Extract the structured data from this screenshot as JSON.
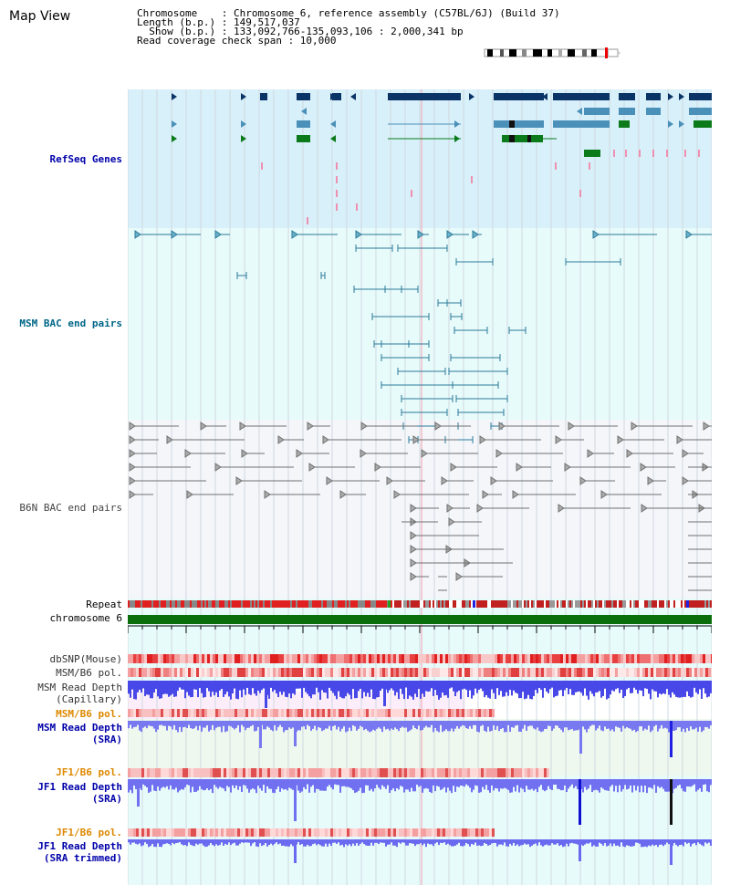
{
  "title": "Map View",
  "info": {
    "chromosome": "Chromosome    : Chromosome 6, reference assembly (C57BL/6J) (Build 37)",
    "length": "Length (b.p.) : 149,517,037",
    "show": "  Show (b.p.) : 133,092,766-135,093,106 : 2,000,341 bp",
    "span": "Read coverage check span : 10,000"
  },
  "tracks": {
    "refseq": "RefSeq Genes",
    "msm_bac": "MSM BAC end pairs",
    "b6n_bac": "B6N BAC end pairs",
    "repeat": "Repeat",
    "chromosome": "chromosome 6",
    "dbsnp": "dbSNP(Mouse)",
    "msm_b6_pol_1": "MSM/B6 pol.",
    "msm_read_cap_1": "MSM Read Depth",
    "msm_read_cap_2": "(Capillary)",
    "msm_b6_pol_2": "MSM/B6 pol.",
    "msm_read_sra_1": "MSM Read Depth",
    "msm_read_sra_2": "(SRA)",
    "jf1_b6_pol_1": "JF1/B6 pol.",
    "jf1_read_sra_1": "JF1 Read Depth",
    "jf1_read_sra_2": "(SRA)",
    "jf1_b6_pol_2": "JF1/B6 pol.",
    "jf1_read_trim_1": "JF1 Read Depth",
    "jf1_read_trim_2": "(SRA trimmed)"
  },
  "axis": {
    "ticks": [
      "133200000",
      "133600000",
      "134000000",
      "134400000",
      "134800000"
    ]
  },
  "colors": {
    "refseq_bg": "#d8f0fa",
    "msm_bg": "#e8fbfb",
    "b6n_bg": "#f4f6fa",
    "gene_navy": "#0a3366",
    "gene_teal": "#4a90b8",
    "gene_green": "#0a7a1a",
    "bac_teal": "#2a7a9a",
    "bac_gray": "#707070",
    "chrom_green": "#0a6e0a",
    "label_blue": "#0000aa",
    "label_teal": "#006688",
    "label_orange": "#dd8800"
  }
}
